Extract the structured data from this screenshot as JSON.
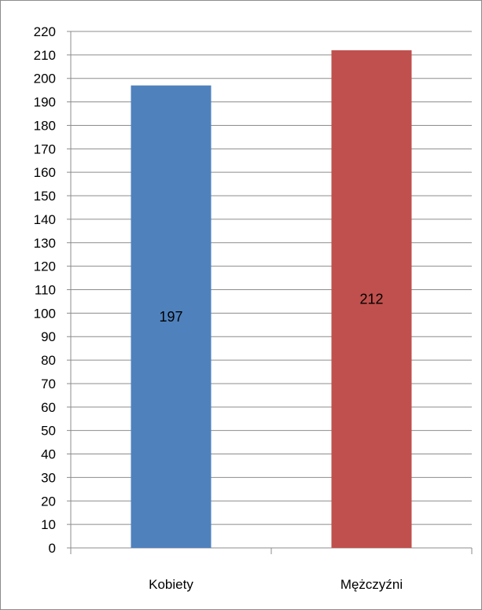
{
  "chart_data": {
    "type": "bar",
    "categories": [
      "Kobiety",
      "Mężczyźni"
    ],
    "values": [
      197,
      212
    ],
    "data_labels": [
      "197",
      "212"
    ],
    "colors": [
      "#4f81bd",
      "#c0504d"
    ],
    "title": "",
    "xlabel": "",
    "ylabel": "",
    "ylim": [
      0,
      220
    ],
    "ytick_step": 10,
    "yticks": [
      "0",
      "10",
      "20",
      "30",
      "40",
      "50",
      "60",
      "70",
      "80",
      "90",
      "100",
      "110",
      "120",
      "130",
      "140",
      "150",
      "160",
      "170",
      "180",
      "190",
      "200",
      "210",
      "220"
    ],
    "grid": true,
    "legend": false
  }
}
